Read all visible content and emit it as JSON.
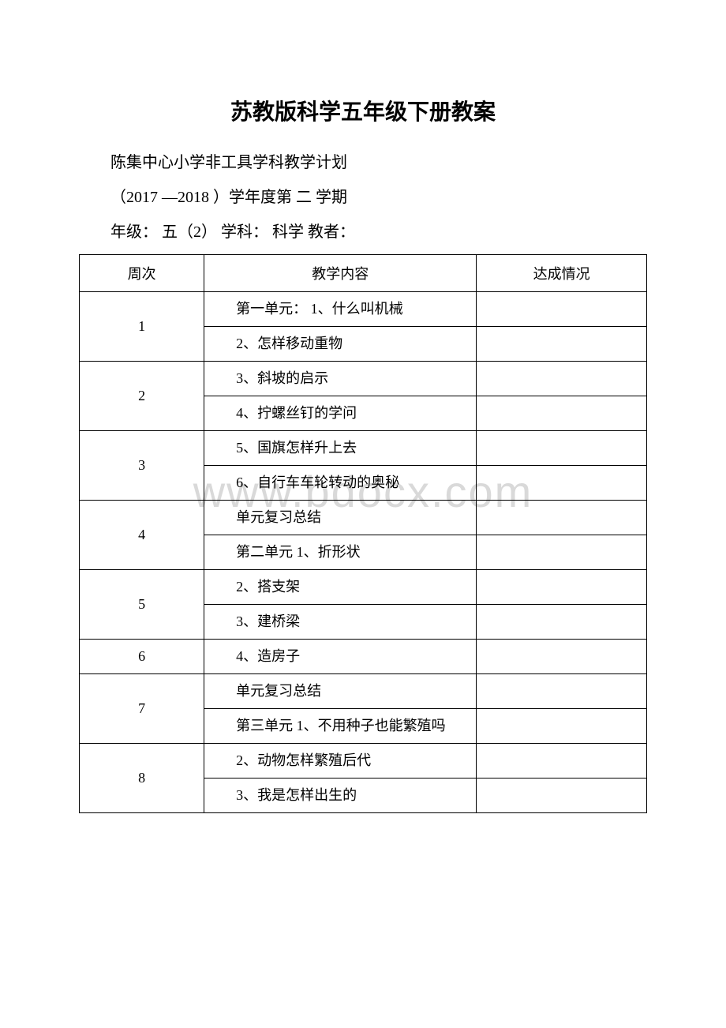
{
  "title": "苏教版科学五年级下册教案",
  "meta": {
    "line1": "陈集中心小学非工具学科教学计划",
    "line2": "（2017 —2018 ）学年度第 二 学期",
    "line3": "年级：  五（2）  学科：  科学  教者："
  },
  "watermark": "www.bdocx.com",
  "table": {
    "headers": {
      "week": "周次",
      "content": "教学内容",
      "status": "达成情况"
    },
    "rows": [
      {
        "week": "1",
        "contents": [
          "第一单元：  1、什么叫机械",
          "2、怎样移动重物"
        ]
      },
      {
        "week": "2",
        "contents": [
          "3、斜坡的启示",
          "4、拧螺丝钉的学问"
        ]
      },
      {
        "week": "3",
        "contents": [
          "5、国旗怎样升上去",
          "6、自行车车轮转动的奥秘"
        ]
      },
      {
        "week": "4",
        "contents": [
          "单元复习总结",
          "第二单元   1、折形状"
        ]
      },
      {
        "week": "5",
        "contents": [
          "2、搭支架",
          "3、建桥梁"
        ]
      },
      {
        "week": "6",
        "contents": [
          "4、造房子"
        ]
      },
      {
        "week": "7",
        "contents": [
          "单元复习总结",
          "第三单元 1、不用种子也能繁殖吗"
        ]
      },
      {
        "week": "8",
        "contents": [
          "2、动物怎样繁殖后代",
          "3、我是怎样出生的"
        ]
      }
    ]
  },
  "colors": {
    "background": "#ffffff",
    "border": "#000000",
    "text": "#000000",
    "watermark": "#d9d9d9"
  },
  "typography": {
    "title_fontsize": 28,
    "body_fontsize": 20,
    "table_fontsize": 18,
    "watermark_fontsize": 56
  }
}
